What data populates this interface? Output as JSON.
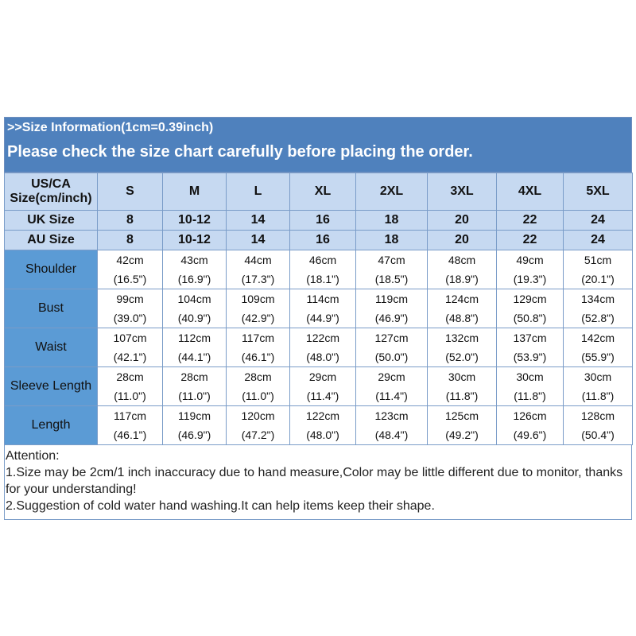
{
  "title": ">>Size Information(1cm=0.39inch)",
  "subtitle": "Please check the size chart carefully before placing the order.",
  "header_rows": [
    {
      "label": "US/CA Size(cm/inch)",
      "values": [
        "S",
        "M",
        "L",
        "XL",
        "2XL",
        "3XL",
        "4XL",
        "5XL"
      ]
    },
    {
      "label": "UK Size",
      "values": [
        "8",
        "10-12",
        "14",
        "16",
        "18",
        "20",
        "22",
        "24"
      ]
    },
    {
      "label": "AU Size",
      "values": [
        "8",
        "10-12",
        "14",
        "16",
        "18",
        "20",
        "22",
        "24"
      ]
    }
  ],
  "rows": [
    {
      "label": "Shoulder",
      "cm": [
        "42cm",
        "43cm",
        "44cm",
        "46cm",
        "47cm",
        "48cm",
        "49cm",
        "51cm"
      ],
      "inch": [
        "(16.5\")",
        "(16.9\")",
        "(17.3\")",
        "(18.1\")",
        "(18.5\")",
        "(18.9\")",
        "(19.3\")",
        "(20.1\")"
      ]
    },
    {
      "label": "Bust",
      "cm": [
        "99cm",
        "104cm",
        "109cm",
        "114cm",
        "119cm",
        "124cm",
        "129cm",
        "134cm"
      ],
      "inch": [
        "(39.0\")",
        "(40.9\")",
        "(42.9\")",
        "(44.9\")",
        "(46.9\")",
        "(48.8\")",
        "(50.8\")",
        "(52.8\")"
      ]
    },
    {
      "label": "Waist",
      "cm": [
        "107cm",
        "112cm",
        "117cm",
        "122cm",
        "127cm",
        "132cm",
        "137cm",
        "142cm"
      ],
      "inch": [
        "(42.1\")",
        "(44.1\")",
        "(46.1\")",
        "(48.0\")",
        "(50.0\")",
        "(52.0\")",
        "(53.9\")",
        "(55.9\")"
      ]
    },
    {
      "label": "Sleeve Length",
      "cm": [
        "28cm",
        "28cm",
        "28cm",
        "29cm",
        "29cm",
        "30cm",
        "30cm",
        "30cm"
      ],
      "inch": [
        "(11.0\")",
        "(11.0\")",
        "(11.0\")",
        "(11.4\")",
        "(11.4\")",
        "(11.8\")",
        "(11.8\")",
        "(11.8\")"
      ]
    },
    {
      "label": "Length",
      "cm": [
        "117cm",
        "119cm",
        "120cm",
        "122cm",
        "123cm",
        "125cm",
        "126cm",
        "128cm"
      ],
      "inch": [
        "(46.1\")",
        "(46.9\")",
        "(47.2\")",
        "(48.0\")",
        "(48.4\")",
        "(49.2\")",
        "(49.6\")",
        "(50.4\")"
      ]
    }
  ],
  "attention": {
    "heading": "Attention:",
    "notes": [
      "1.Size may be 2cm/1 inch inaccuracy due to hand measure,Color may be little different due to monitor, thanks for your understanding!",
      "2.Suggestion of cold water hand washing.It can help items keep their shape."
    ]
  },
  "colors": {
    "title_band": "#4f81bd",
    "header_rows": "#c6d9f1",
    "label_column": "#5b9bd5",
    "border": "#7a9cc8"
  }
}
